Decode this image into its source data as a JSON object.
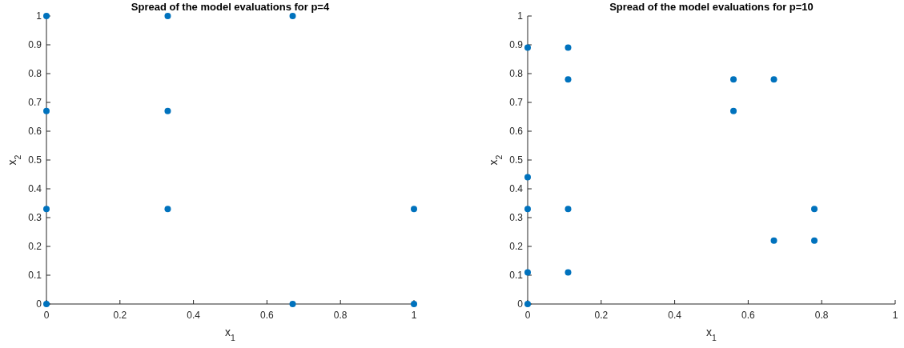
{
  "chart_data": [
    {
      "type": "scatter",
      "title": "Spread of the model evaluations for p=4",
      "xlabel": "x$_{1}$",
      "ylabel": "x$_{2}$",
      "xlim": [
        0,
        1
      ],
      "ylim": [
        0,
        1
      ],
      "xticks": [
        0,
        0.2,
        0.4,
        0.6,
        0.8,
        1
      ],
      "yticks": [
        0,
        0.1,
        0.2,
        0.3,
        0.4,
        0.5,
        0.6,
        0.7,
        0.8,
        0.9,
        1
      ],
      "marker": "circle",
      "series": [
        {
          "color": "#0072bd",
          "x": [
            0,
            0.33,
            0.67,
            0,
            0.33,
            0,
            0.33,
            1,
            0,
            0.67,
            1
          ],
          "values": [
            1,
            1,
            1,
            0.67,
            0.67,
            0.33,
            0.33,
            0.33,
            0,
            0,
            0
          ]
        }
      ]
    },
    {
      "type": "scatter",
      "title": "Spread of the model evaluations for p=10",
      "xlabel": "x$_{1}$",
      "ylabel": "x$_{2}$",
      "xlim": [
        0,
        1
      ],
      "ylim": [
        0,
        1
      ],
      "xticks": [
        0,
        0.2,
        0.4,
        0.6,
        0.8,
        1
      ],
      "yticks": [
        0,
        0.1,
        0.2,
        0.3,
        0.4,
        0.5,
        0.6,
        0.7,
        0.8,
        0.9,
        1
      ],
      "marker": "circle",
      "series": [
        {
          "color": "#0072bd",
          "x": [
            0,
            0.11,
            0.11,
            0.56,
            0.67,
            0.56,
            0,
            0,
            0.11,
            0.78,
            0.67,
            0.78,
            0,
            0.11,
            0
          ],
          "values": [
            0.89,
            0.89,
            0.78,
            0.78,
            0.78,
            0.67,
            0.44,
            0.33,
            0.33,
            0.33,
            0.22,
            0.22,
            0.11,
            0.11,
            0
          ]
        }
      ]
    }
  ]
}
